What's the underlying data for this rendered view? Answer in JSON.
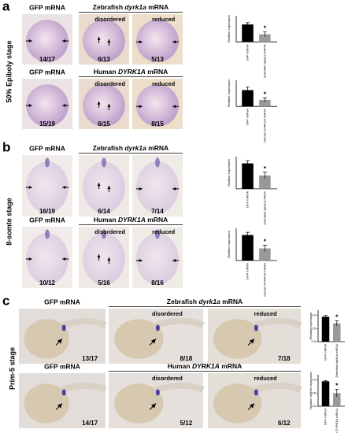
{
  "panels": [
    {
      "letter": "a",
      "stage": "50% Epiboly stage",
      "rows": [
        {
          "first": {
            "heading": "GFP mRNA",
            "count": "14/17"
          },
          "group": {
            "heading": {
              "pre": "Zebrafish",
              "gene": "dyrk1a",
              "post": "mRNA"
            },
            "items": [
              {
                "label": "disordered",
                "count": "6/13"
              },
              {
                "label": "reduced",
                "count": "5/13"
              }
            ]
          },
          "chart": {
            "type": "bar",
            "ylabel": "Relative expression",
            "categories": [
              "GFP mRNA",
              "Zebrafish dyrk1a mRNA"
            ],
            "values": [
              0.8,
              0.35
            ],
            "errors": [
              0.08,
              0.12
            ],
            "colors": [
              "#000000",
              "#999999"
            ],
            "ylim": [
              0,
              1.2
            ],
            "significance": "*"
          }
        },
        {
          "first": {
            "heading": "GFP mRNA",
            "count": "15/19"
          },
          "group": {
            "heading": {
              "pre": "Human",
              "gene": "DYRK1A",
              "post": "mRNA"
            },
            "items": [
              {
                "label": "disordered",
                "count": "6/15"
              },
              {
                "label": "reduced",
                "count": "8/15"
              }
            ]
          },
          "chart": {
            "type": "bar",
            "ylabel": "Relative expression",
            "categories": [
              "GFP mRNA",
              "Human DYRK1A mRNA"
            ],
            "values": [
              0.75,
              0.3
            ],
            "errors": [
              0.15,
              0.1
            ],
            "colors": [
              "#000000",
              "#999999"
            ],
            "ylim": [
              0,
              1.2
            ],
            "significance": "*"
          }
        }
      ]
    },
    {
      "letter": "b",
      "stage": "8-somte stage",
      "rows": [
        {
          "first": {
            "heading": "GFP mRNA",
            "count": "16/19"
          },
          "group": {
            "heading": {
              "pre": "Zebrafish",
              "gene": "dyrk1a",
              "post": "mRNA"
            },
            "items": [
              {
                "label": "",
                "count": "6/14"
              },
              {
                "label": "",
                "count": "7/14"
              }
            ]
          },
          "chart": {
            "type": "bar",
            "ylabel": "Relative expression",
            "categories": [
              "GFP mRNA",
              "Zebrafish dyrk1a mRNA"
            ],
            "values": [
              0.95,
              0.5
            ],
            "errors": [
              0.1,
              0.12
            ],
            "colors": [
              "#000000",
              "#999999"
            ],
            "ylim": [
              0,
              1.2
            ],
            "significance": "*"
          }
        },
        {
          "first": {
            "heading": "GFP mRNA",
            "count": "10/12"
          },
          "group": {
            "heading": {
              "pre": "Human",
              "gene": "DYRK1A",
              "post": "mRNA"
            },
            "items": [
              {
                "label": "disordered",
                "count": "5/16"
              },
              {
                "label": "reduced",
                "count": "8/16"
              }
            ]
          },
          "chart": {
            "type": "bar",
            "ylabel": "Relative expression",
            "categories": [
              "GFP mRNA",
              "Human DYRK1A mRNA"
            ],
            "values": [
              0.95,
              0.45
            ],
            "errors": [
              0.1,
              0.12
            ],
            "colors": [
              "#000000",
              "#999999"
            ],
            "ylim": [
              0,
              1.2
            ],
            "significance": "*"
          }
        }
      ]
    },
    {
      "letter": "c",
      "stage": "Prim-5 stage",
      "rows": [
        {
          "first": {
            "heading": "GFP mRNA",
            "count": "13/17"
          },
          "group": {
            "heading": {
              "pre": "Zebrafish",
              "gene": "dyrk1a",
              "post": "mRNA"
            },
            "items": [
              {
                "label": "disordered",
                "count": "8/18"
              },
              {
                "label": "reduced",
                "count": "7/18"
              }
            ]
          },
          "chart": {
            "type": "bar",
            "ylabel": "Relative expression",
            "categories": [
              "GFP mRNA",
              "Zebrafish dyrk1a mRNA"
            ],
            "values": [
              0.95,
              0.7
            ],
            "errors": [
              0.05,
              0.1
            ],
            "colors": [
              "#000000",
              "#999999"
            ],
            "ylim": [
              0,
              1.2
            ],
            "yticks": [
              {
                "value": 0,
                "label": "0.0"
              },
              {
                "value": 0.5,
                "label": "0.5"
              },
              {
                "value": 1,
                "label": "1.0"
              }
            ],
            "significance": "*"
          }
        },
        {
          "first": {
            "heading": "GFP mRNA",
            "count": "14/17"
          },
          "group": {
            "heading": {
              "pre": "Human",
              "gene": "DYRK1A",
              "post": "mRNA"
            },
            "items": [
              {
                "label": "disordered",
                "count": "5/12"
              },
              {
                "label": "reduced",
                "count": "6/12"
              }
            ]
          },
          "chart": {
            "type": "bar",
            "ylabel": "Relative mRNA expression",
            "categories": [
              "GFP mRNA",
              "Human DYRK1A mRNA"
            ],
            "values": [
              0.95,
              0.5
            ],
            "errors": [
              0.03,
              0.15
            ],
            "colors": [
              "#000000",
              "#999999"
            ],
            "ylim": [
              0,
              1.2
            ],
            "yticks": [
              {
                "value": 0,
                "label": "0.0"
              },
              {
                "value": 0.5,
                "label": "0.5"
              },
              {
                "value": 1,
                "label": "1.0"
              }
            ],
            "significance": "*"
          }
        }
      ]
    }
  ]
}
